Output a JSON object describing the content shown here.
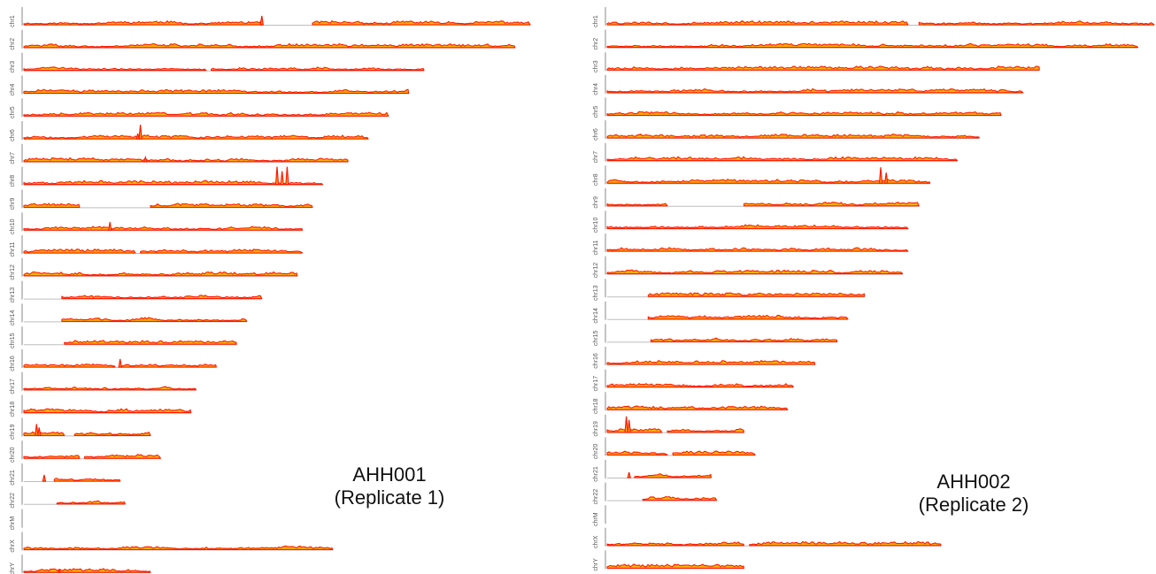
{
  "colors": {
    "peak": "#ff1a00",
    "fill": "#ffb000",
    "baseline": "#bdbdbd",
    "axis": "#8a8a8a",
    "label": "#555555"
  },
  "chart_data": [
    {
      "type": "area",
      "sample": "AHH001",
      "replicate": "(Replicate 1)",
      "tracks": [
        {
          "chr": "chr1",
          "length": 1.0,
          "segments": [
            [
              0,
              0.47
            ],
            [
              0.57,
              1.0
            ]
          ],
          "spikes": [
            [
              0.47,
              0.5
            ]
          ]
        },
        {
          "chr": "chr2",
          "length": 0.97,
          "segments": [
            [
              0,
              0.97
            ]
          ],
          "spikes": []
        },
        {
          "chr": "chr3",
          "length": 0.79,
          "segments": [
            [
              0,
              0.36
            ],
            [
              0.37,
              0.79
            ]
          ],
          "spikes": []
        },
        {
          "chr": "chr4",
          "length": 0.76,
          "segments": [
            [
              0,
              0.76
            ]
          ],
          "spikes": []
        },
        {
          "chr": "chr5",
          "length": 0.72,
          "segments": [
            [
              0,
              0.72
            ]
          ],
          "spikes": []
        },
        {
          "chr": "chr6",
          "length": 0.68,
          "segments": [
            [
              0,
              0.68
            ]
          ],
          "spikes": [
            [
              0.23,
              0.8
            ],
            [
              0.225,
              0.3
            ]
          ]
        },
        {
          "chr": "chr7",
          "length": 0.64,
          "segments": [
            [
              0,
              0.64
            ]
          ],
          "spikes": [
            [
              0.24,
              0.25
            ]
          ]
        },
        {
          "chr": "chr8",
          "length": 0.59,
          "segments": [
            [
              0,
              0.59
            ]
          ],
          "spikes": [
            [
              0.5,
              1.0
            ],
            [
              0.51,
              0.75
            ],
            [
              0.52,
              1.0
            ]
          ]
        },
        {
          "chr": "chr9",
          "length": 0.57,
          "segments": [
            [
              0,
              0.11
            ],
            [
              0.25,
              0.57
            ]
          ],
          "spikes": []
        },
        {
          "chr": "chr10",
          "length": 0.55,
          "segments": [
            [
              0,
              0.55
            ]
          ],
          "spikes": [
            [
              0.17,
              0.45
            ]
          ]
        },
        {
          "chr": "chr11",
          "length": 0.55,
          "segments": [
            [
              0,
              0.22
            ],
            [
              0.23,
              0.55
            ]
          ],
          "spikes": []
        },
        {
          "chr": "chr12",
          "length": 0.54,
          "segments": [
            [
              0,
              0.54
            ]
          ],
          "spikes": []
        },
        {
          "chr": "chr13",
          "length": 0.47,
          "segments": [
            [
              0.075,
              0.47
            ]
          ],
          "spikes": []
        },
        {
          "chr": "chr14",
          "length": 0.44,
          "segments": [
            [
              0.075,
              0.44
            ]
          ],
          "spikes": []
        },
        {
          "chr": "chr15",
          "length": 0.42,
          "segments": [
            [
              0.08,
              0.42
            ]
          ],
          "spikes": []
        },
        {
          "chr": "chr16",
          "length": 0.38,
          "segments": [
            [
              0,
              0.18
            ],
            [
              0.19,
              0.38
            ]
          ],
          "spikes": [
            [
              0.19,
              0.45
            ]
          ]
        },
        {
          "chr": "chr17",
          "length": 0.34,
          "segments": [
            [
              0,
              0.34
            ]
          ],
          "spikes": []
        },
        {
          "chr": "chr18",
          "length": 0.33,
          "segments": [
            [
              0,
              0.33
            ]
          ],
          "spikes": []
        },
        {
          "chr": "chr19",
          "length": 0.25,
          "segments": [
            [
              0,
              0.08
            ],
            [
              0.1,
              0.25
            ]
          ],
          "spikes": [
            [
              0.025,
              0.65
            ],
            [
              0.03,
              0.45
            ]
          ]
        },
        {
          "chr": "chr20",
          "length": 0.27,
          "segments": [
            [
              0,
              0.11
            ],
            [
              0.12,
              0.27
            ]
          ],
          "spikes": []
        },
        {
          "chr": "chr21",
          "length": 0.19,
          "segments": [
            [
              0.06,
              0.19
            ]
          ],
          "spikes": [
            [
              0.04,
              0.35
            ]
          ]
        },
        {
          "chr": "chr22",
          "length": 0.2,
          "segments": [
            [
              0.065,
              0.2
            ]
          ],
          "spikes": []
        },
        {
          "chr": "chrM",
          "length": 0.0,
          "segments": [],
          "spikes": []
        },
        {
          "chr": "chrX",
          "length": 0.61,
          "segments": [
            [
              0,
              0.61
            ]
          ],
          "spikes": []
        },
        {
          "chr": "chrY",
          "length": 0.25,
          "segments": [
            [
              0,
              0.25
            ]
          ],
          "spikes": [
            [
              0.07,
              0.15
            ]
          ]
        }
      ]
    },
    {
      "type": "area",
      "sample": "AHH002",
      "replicate": "(Replicate 2)",
      "tracks": [
        {
          "chr": "chr1",
          "length": 1.0,
          "segments": [
            [
              0,
              0.55
            ],
            [
              0.57,
              1.0
            ]
          ],
          "spikes": []
        },
        {
          "chr": "chr2",
          "length": 0.97,
          "segments": [
            [
              0,
              0.97
            ]
          ],
          "spikes": []
        },
        {
          "chr": "chr3",
          "length": 0.79,
          "segments": [
            [
              0,
              0.79
            ]
          ],
          "spikes": []
        },
        {
          "chr": "chr4",
          "length": 0.76,
          "segments": [
            [
              0,
              0.76
            ]
          ],
          "spikes": []
        },
        {
          "chr": "chr5",
          "length": 0.72,
          "segments": [
            [
              0,
              0.72
            ]
          ],
          "spikes": []
        },
        {
          "chr": "chr6",
          "length": 0.68,
          "segments": [
            [
              0,
              0.68
            ]
          ],
          "spikes": []
        },
        {
          "chr": "chr7",
          "length": 0.64,
          "segments": [
            [
              0,
              0.64
            ]
          ],
          "spikes": []
        },
        {
          "chr": "chr8",
          "length": 0.59,
          "segments": [
            [
              0,
              0.59
            ]
          ],
          "spikes": [
            [
              0.5,
              0.9
            ],
            [
              0.51,
              0.6
            ]
          ]
        },
        {
          "chr": "chr9",
          "length": 0.57,
          "segments": [
            [
              0,
              0.11
            ],
            [
              0.25,
              0.57
            ]
          ],
          "spikes": []
        },
        {
          "chr": "chr10",
          "length": 0.55,
          "segments": [
            [
              0,
              0.55
            ]
          ],
          "spikes": []
        },
        {
          "chr": "chr11",
          "length": 0.55,
          "segments": [
            [
              0,
              0.55
            ]
          ],
          "spikes": []
        },
        {
          "chr": "chr12",
          "length": 0.54,
          "segments": [
            [
              0,
              0.54
            ]
          ],
          "spikes": []
        },
        {
          "chr": "chr13",
          "length": 0.47,
          "segments": [
            [
              0.075,
              0.47
            ]
          ],
          "spikes": []
        },
        {
          "chr": "chr14",
          "length": 0.44,
          "segments": [
            [
              0.075,
              0.44
            ]
          ],
          "spikes": []
        },
        {
          "chr": "chr15",
          "length": 0.42,
          "segments": [
            [
              0.08,
              0.42
            ]
          ],
          "spikes": []
        },
        {
          "chr": "chr16",
          "length": 0.38,
          "segments": [
            [
              0,
              0.38
            ]
          ],
          "spikes": []
        },
        {
          "chr": "chr17",
          "length": 0.34,
          "segments": [
            [
              0,
              0.34
            ]
          ],
          "spikes": []
        },
        {
          "chr": "chr18",
          "length": 0.33,
          "segments": [
            [
              0,
              0.33
            ]
          ],
          "spikes": []
        },
        {
          "chr": "chr19",
          "length": 0.25,
          "segments": [
            [
              0,
              0.1
            ],
            [
              0.11,
              0.25
            ]
          ],
          "spikes": [
            [
              0.035,
              0.9
            ],
            [
              0.04,
              0.7
            ]
          ]
        },
        {
          "chr": "chr20",
          "length": 0.27,
          "segments": [
            [
              0,
              0.11
            ],
            [
              0.12,
              0.27
            ]
          ],
          "spikes": []
        },
        {
          "chr": "chr21",
          "length": 0.19,
          "segments": [
            [
              0.05,
              0.19
            ]
          ],
          "spikes": [
            [
              0.04,
              0.3
            ]
          ]
        },
        {
          "chr": "chr22",
          "length": 0.2,
          "segments": [
            [
              0.065,
              0.2
            ]
          ],
          "spikes": []
        },
        {
          "chr": "chrM",
          "length": 0.0,
          "segments": [],
          "spikes": []
        },
        {
          "chr": "chrX",
          "length": 0.61,
          "segments": [
            [
              0,
              0.25
            ],
            [
              0.26,
              0.61
            ]
          ],
          "spikes": []
        },
        {
          "chr": "chrY",
          "length": 0.25,
          "segments": [
            [
              0,
              0.25
            ]
          ],
          "spikes": []
        }
      ]
    }
  ]
}
